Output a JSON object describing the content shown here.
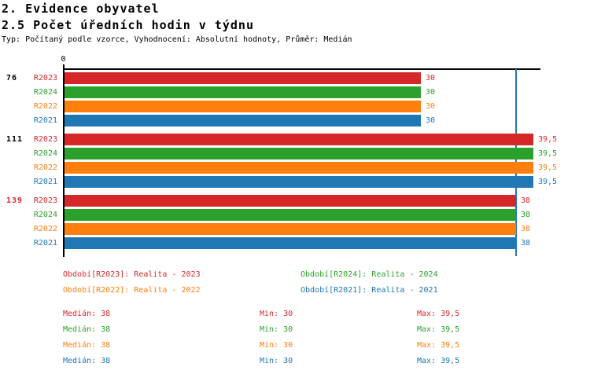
{
  "header": {
    "title": "2. Evidence obyvatel",
    "subtitle": "2.5 Počet úředních hodin v týdnu",
    "meta": "Typ: Počítaný podle vzorce, Vyhodnocení: Absolutní hodnoty, Průměr: Medián"
  },
  "colors": {
    "axis": "#000000",
    "median_line": "#1f77b4",
    "r2023": "#d62728",
    "r2024": "#2ca02c",
    "r2022": "#ff7f0e",
    "r2021": "#1f77b4"
  },
  "chart_data": {
    "type": "bar",
    "orientation": "horizontal",
    "title": "2.5 Počet úředních hodin v týdnu",
    "x_axis": {
      "min": 0,
      "max": 40,
      "tick_labels": [
        "0"
      ],
      "grid": false
    },
    "median_marker": 38,
    "series_order": [
      "R2023",
      "R2024",
      "R2022",
      "R2021"
    ],
    "series_colors": {
      "R2023": "#d62728",
      "R2024": "#2ca02c",
      "R2022": "#ff7f0e",
      "R2021": "#1f77b4"
    },
    "groups": [
      {
        "label": "76",
        "label_color": "#000000",
        "values": [
          30,
          30,
          30,
          30
        ],
        "value_labels": [
          "30",
          "30",
          "30",
          "30"
        ]
      },
      {
        "label": "111",
        "label_color": "#000000",
        "values": [
          39.5,
          39.5,
          39.5,
          39.5
        ],
        "value_labels": [
          "39,5",
          "39,5",
          "39,5",
          "39,5"
        ]
      },
      {
        "label": "139",
        "label_color": "#d62728",
        "values": [
          38,
          38,
          38,
          38
        ],
        "value_labels": [
          "38",
          "38",
          "38",
          "38"
        ]
      }
    ],
    "legend": [
      {
        "series": "R2023",
        "label": "Období[R2023]: Realita - 2023",
        "color": "#d62728"
      },
      {
        "series": "R2024",
        "label": "Období[R2024]: Realita - 2024",
        "color": "#2ca02c"
      },
      {
        "series": "R2022",
        "label": "Období[R2022]: Realita - 2022",
        "color": "#ff7f0e"
      },
      {
        "series": "R2021",
        "label": "Období[R2021]: Realita - 2021",
        "color": "#1f77b4"
      }
    ],
    "stats": [
      {
        "series": "R2023",
        "color": "#d62728",
        "median": "Medián: 38",
        "min": "Min: 30",
        "max": "Max: 39,5"
      },
      {
        "series": "R2024",
        "color": "#2ca02c",
        "median": "Medián: 38",
        "min": "Min: 30",
        "max": "Max: 39,5"
      },
      {
        "series": "R2022",
        "color": "#ff7f0e",
        "median": "Medián: 38",
        "min": "Min: 30",
        "max": "Max: 39,5"
      },
      {
        "series": "R2021",
        "color": "#1f77b4",
        "median": "Medián: 38",
        "min": "Min: 30",
        "max": "Max: 39,5"
      }
    ]
  }
}
